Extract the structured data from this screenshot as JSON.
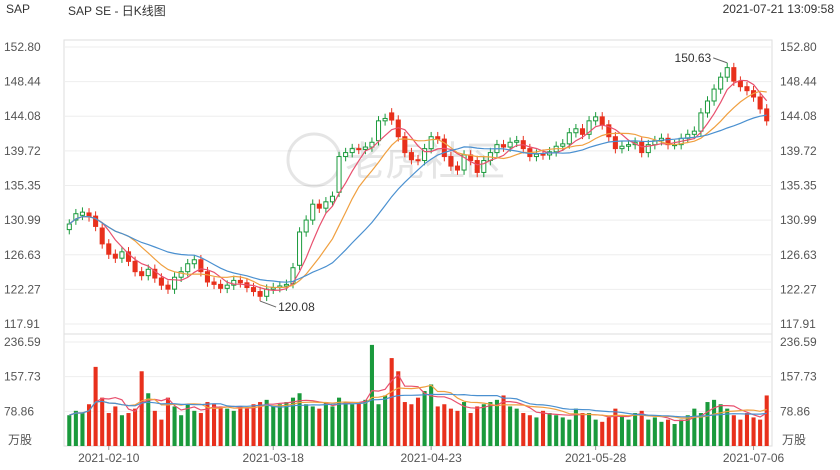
{
  "header": {
    "ticker": "SAP",
    "chart_name": "SAP SE - 日K线图",
    "timestamp": "2021-07-21 13:09:58"
  },
  "watermark": "老虎社区",
  "colors": {
    "up": "#e8301c",
    "down": "#1a9a3c",
    "ma5": "#e8506e",
    "ma10": "#f0a040",
    "ma20": "#4a90d0",
    "grid": "#dddddd",
    "axis_text": "#555555"
  },
  "chart_data": [
    {
      "type": "candlestick",
      "price_axis": {
        "ticks": [
          "152.80",
          "148.44",
          "144.08",
          "139.72",
          "135.35",
          "130.99",
          "126.63",
          "122.27",
          "117.91"
        ],
        "ylim": [
          117.91,
          152.8
        ]
      },
      "x_axis_labels": [
        "2021-02-10",
        "2021-03-18",
        "2021-04-23",
        "2021-05-28",
        "2021-07-06"
      ],
      "annotations": [
        {
          "text": "150.63",
          "role": "period_high"
        },
        {
          "text": "120.08",
          "role": "period_low"
        }
      ],
      "series": [
        {
          "name": "MA5",
          "type": "line"
        },
        {
          "name": "MA10",
          "type": "line"
        },
        {
          "name": "MA20",
          "type": "line"
        }
      ],
      "closes": [
        130.5,
        131.8,
        132.0,
        131.4,
        130.2,
        128.0,
        126.7,
        126.2,
        127.0,
        125.8,
        124.5,
        124.0,
        124.8,
        123.7,
        122.8,
        122.3,
        123.8,
        124.5,
        125.5,
        126.0,
        124.5,
        123.2,
        122.9,
        122.4,
        122.8,
        123.4,
        123.1,
        122.5,
        122.0,
        121.4,
        122.3,
        122.5,
        122.7,
        122.9,
        125.0,
        129.5,
        131.0,
        133.0,
        132.5,
        133.3,
        134.0,
        139.0,
        139.5,
        140.0,
        139.9,
        140.2,
        140.8,
        143.5,
        143.8,
        143.6,
        141.5,
        139.5,
        138.6,
        138.5,
        140.0,
        141.5,
        141.2,
        139.0,
        137.8,
        137.3,
        139.2,
        138.5,
        137.0,
        138.5,
        139.5,
        140.5,
        140.2,
        140.8,
        141.0,
        140.0,
        139.0,
        139.3,
        139.2,
        139.6,
        140.3,
        140.6,
        142.0,
        142.5,
        141.8,
        143.5,
        144.0,
        143.0,
        141.5,
        140.0,
        140.3,
        140.5,
        140.8,
        139.5,
        140.5,
        141.0,
        141.3,
        140.5,
        140.5,
        141.3,
        141.8,
        142.2,
        144.5,
        146.0,
        147.5,
        149.0,
        150.2,
        148.5,
        147.8,
        147.3,
        146.5,
        145.0,
        143.5
      ],
      "opens": [
        129.8,
        131.0,
        131.6,
        131.9,
        131.5,
        130.0,
        128.0,
        126.7,
        126.2,
        127.0,
        125.8,
        124.5,
        124.0,
        124.8,
        123.7,
        122.8,
        122.3,
        123.8,
        124.5,
        125.5,
        126.0,
        124.5,
        123.2,
        122.9,
        122.4,
        122.8,
        123.4,
        123.1,
        122.5,
        122.0,
        121.4,
        122.3,
        122.5,
        122.7,
        123.0,
        125.3,
        129.5,
        131.0,
        133.0,
        132.5,
        133.3,
        134.5,
        139.0,
        139.5,
        140.0,
        139.9,
        140.2,
        141.0,
        143.5,
        144.5,
        143.6,
        141.5,
        139.5,
        138.6,
        138.5,
        140.0,
        141.5,
        141.2,
        139.0,
        137.8,
        137.3,
        139.2,
        138.5,
        137.0,
        138.5,
        139.5,
        140.5,
        140.2,
        140.8,
        141.0,
        140.0,
        139.0,
        139.3,
        139.2,
        139.6,
        140.3,
        140.6,
        142.0,
        142.5,
        141.8,
        143.5,
        144.0,
        143.0,
        141.5,
        140.0,
        140.3,
        140.5,
        140.8,
        139.5,
        140.5,
        141.0,
        141.3,
        140.5,
        140.5,
        141.3,
        141.8,
        142.2,
        144.5,
        146.0,
        147.5,
        149.0,
        150.2,
        148.5,
        147.8,
        147.3,
        146.5,
        145.0
      ],
      "volume_axis": {
        "ticks": [
          "236.59",
          "157.73",
          "78.86"
        ],
        "unit": "万股",
        "ylim": [
          0,
          236.59
        ]
      },
      "volumes": [
        70,
        80,
        75,
        95,
        180,
        110,
        75,
        90,
        70,
        75,
        85,
        170,
        120,
        80,
        60,
        110,
        90,
        70,
        95,
        80,
        75,
        100,
        95,
        90,
        85,
        80,
        90,
        85,
        95,
        100,
        105,
        90,
        95,
        100,
        110,
        120,
        95,
        90,
        85,
        100,
        90,
        110,
        100,
        95,
        100,
        105,
        230,
        95,
        115,
        200,
        170,
        100,
        95,
        110,
        125,
        140,
        90,
        95,
        85,
        80,
        100,
        75,
        90,
        95,
        100,
        105,
        115,
        90,
        85,
        75,
        70,
        65,
        80,
        75,
        70,
        65,
        60,
        85,
        75,
        75,
        60,
        55,
        65,
        85,
        70,
        60,
        75,
        80,
        60,
        65,
        55,
        60,
        50,
        60,
        70,
        85,
        75,
        100,
        105,
        95,
        85,
        70,
        60,
        75,
        65,
        60,
        115
      ],
      "ma_volume_series": [
        {
          "name": "MA5",
          "type": "line"
        },
        {
          "name": "MA10",
          "type": "line"
        },
        {
          "name": "MA20",
          "type": "line"
        }
      ]
    }
  ]
}
